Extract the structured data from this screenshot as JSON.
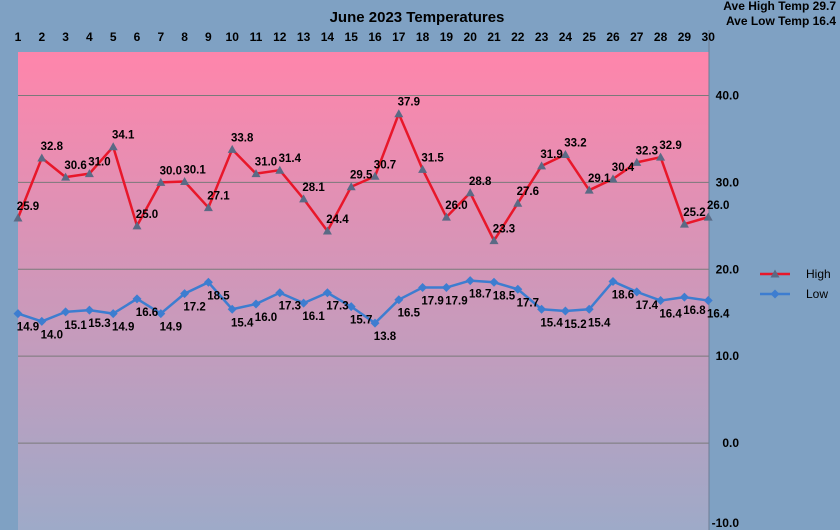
{
  "chart_data": {
    "type": "line",
    "title": "June 2023 Temperatures",
    "x": [
      "1",
      "2",
      "3",
      "4",
      "5",
      "6",
      "7",
      "8",
      "9",
      "10",
      "11",
      "12",
      "13",
      "14",
      "15",
      "16",
      "17",
      "18",
      "19",
      "20",
      "21",
      "22",
      "23",
      "24",
      "25",
      "26",
      "27",
      "28",
      "29",
      "30"
    ],
    "ylim": [
      -10,
      45
    ],
    "yticks": [
      "40.0",
      "30.0",
      "20.0",
      "10.0",
      "0.0",
      "-10.0"
    ],
    "grid": true,
    "legend_position": "right",
    "background_gradient": [
      "#ff85ab",
      "#9eaac8"
    ],
    "series": [
      {
        "name": "High",
        "color": "#e8172a",
        "values": [
          25.9,
          32.8,
          30.6,
          31.0,
          34.1,
          25.0,
          30.0,
          30.1,
          27.1,
          33.8,
          31.0,
          31.4,
          28.1,
          24.4,
          29.5,
          30.7,
          37.9,
          31.5,
          26.0,
          28.8,
          23.3,
          27.6,
          31.9,
          33.2,
          29.1,
          30.4,
          32.3,
          32.9,
          25.2,
          26.0
        ],
        "labels": [
          "25.9",
          "32.8",
          "30.6",
          "31.0",
          "34.1",
          "25.0",
          "30.0",
          "30.1",
          "27.1",
          "33.8",
          "31.0",
          "31.4",
          "28.1",
          "24.4",
          "29.5",
          "30.7",
          "37.9",
          "31.5",
          "26.0",
          "28.8",
          "23.3",
          "27.6",
          "31.9",
          "33.2",
          "29.1",
          "30.4",
          "32.3",
          "32.9",
          "25.2",
          "26.0"
        ]
      },
      {
        "name": "Low",
        "color": "#3d7dd0",
        "values": [
          14.9,
          14.0,
          15.1,
          15.3,
          14.9,
          16.6,
          14.9,
          17.2,
          18.5,
          15.4,
          16.0,
          17.3,
          16.1,
          17.3,
          15.7,
          13.8,
          16.5,
          17.9,
          17.9,
          18.7,
          18.5,
          17.7,
          15.4,
          15.2,
          15.4,
          18.6,
          17.4,
          16.4,
          16.8,
          16.4
        ],
        "labels": [
          "14.9",
          "14.0",
          "15.1",
          "15.3",
          "14.9",
          "16.6",
          "14.9",
          "17.2",
          "18.5",
          "15.4",
          "16.0",
          "17.3",
          "16.1",
          "17.3",
          "15.7",
          "13.8",
          "16.5",
          "17.9",
          "17.9",
          "18.7",
          "18.5",
          "17.7",
          "15.4",
          "15.2",
          "15.4",
          "18.6",
          "17.4",
          "16.4",
          "16.8",
          "16.4"
        ]
      }
    ],
    "annotations": [
      "Ave High Temp 29.7",
      "Ave Low Temp 16.4"
    ]
  }
}
